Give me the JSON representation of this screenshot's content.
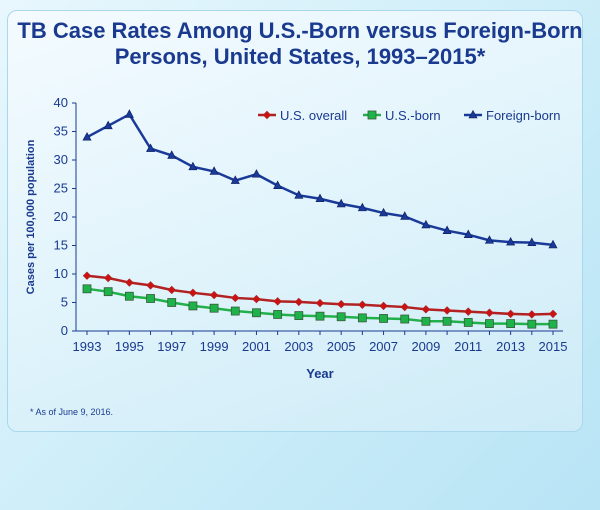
{
  "chart_data": {
    "type": "line",
    "title": "TB Case Rates Among U.S.-Born versus Foreign-Born Persons, United States, 1993–2015*",
    "xlabel": "Year",
    "ylabel": "Cases per 100,000 population",
    "ylim": [
      0,
      40
    ],
    "yticks": [
      "0",
      "5",
      "10",
      "15",
      "20",
      "25",
      "30",
      "35",
      "40"
    ],
    "xticks": [
      "1993",
      "1995",
      "1997",
      "1999",
      "2001",
      "2003",
      "2005",
      "2007",
      "2009",
      "2011",
      "2013",
      "2015"
    ],
    "x": [
      1993,
      1994,
      1995,
      1996,
      1997,
      1998,
      1999,
      2000,
      2001,
      2002,
      2003,
      2004,
      2005,
      2006,
      2007,
      2008,
      2009,
      2010,
      2011,
      2012,
      2013,
      2014,
      2015
    ],
    "legend": "top-right",
    "grid": false,
    "series": [
      {
        "name": "U.S. overall",
        "color": "#b22222",
        "marker": "diamond",
        "values": [
          9.7,
          9.3,
          8.5,
          8.0,
          7.2,
          6.7,
          6.3,
          5.8,
          5.6,
          5.2,
          5.1,
          4.9,
          4.7,
          4.6,
          4.4,
          4.2,
          3.8,
          3.6,
          3.4,
          3.2,
          3.0,
          2.9,
          3.0
        ]
      },
      {
        "name": "U.S.-born",
        "color": "#22b04a",
        "marker": "square",
        "values": [
          7.4,
          6.9,
          6.1,
          5.7,
          5.0,
          4.4,
          4.0,
          3.5,
          3.2,
          2.9,
          2.7,
          2.6,
          2.5,
          2.3,
          2.2,
          2.1,
          1.7,
          1.7,
          1.5,
          1.3,
          1.3,
          1.2,
          1.2
        ]
      },
      {
        "name": "Foreign-born",
        "color": "#1a3a9a",
        "marker": "triangle",
        "values": [
          34.0,
          36.0,
          38.0,
          32.0,
          30.8,
          28.8,
          28.0,
          26.4,
          27.5,
          25.5,
          23.8,
          23.2,
          22.3,
          21.6,
          20.7,
          20.1,
          18.6,
          17.6,
          16.9,
          15.9,
          15.6,
          15.5,
          15.1
        ]
      }
    ]
  },
  "footnote": "*  As of June 9, 2016."
}
